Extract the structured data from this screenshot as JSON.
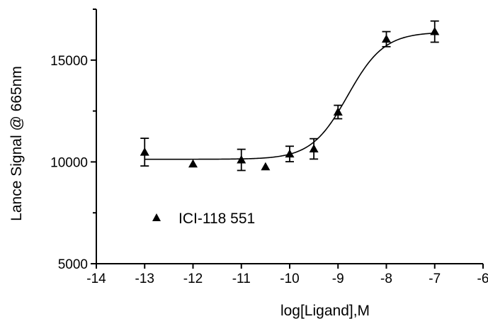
{
  "chart_data": {
    "type": "scatter",
    "title": "",
    "xlabel": "log[Ligand],M",
    "ylabel": "Lance Signal @ 665nm",
    "xlim": [
      -14,
      -6
    ],
    "ylim": [
      5000,
      17500
    ],
    "xticks": [
      -14,
      -13,
      -12,
      -11,
      -10,
      -9,
      -8,
      -7,
      -6
    ],
    "yticks": [
      5000,
      10000,
      15000
    ],
    "xtick_labels": [
      "-14",
      "-13",
      "-12",
      "-11",
      "-10",
      "-9",
      "-8",
      "-7",
      "-6"
    ],
    "ytick_labels": [
      "5000",
      "10000",
      "15000"
    ],
    "grid": false,
    "legend_position": "lower-left",
    "series": [
      {
        "name": "ICI-118 551",
        "marker": "triangle",
        "color": "#000000",
        "x": [
          -13,
          -12,
          -11,
          -10.5,
          -10,
          -9.5,
          -9,
          -8,
          -7
        ],
        "y": [
          10480,
          9900,
          10100,
          9760,
          10390,
          10640,
          12450,
          16030,
          16400
        ],
        "err": [
          680,
          0,
          520,
          0,
          380,
          500,
          330,
          370,
          520
        ]
      }
    ],
    "fit_curve": {
      "model": "sigmoidal dose-response",
      "bottom": 10130,
      "top": 16380,
      "log_ec50": -8.8,
      "hill_slope": 1.15
    }
  }
}
